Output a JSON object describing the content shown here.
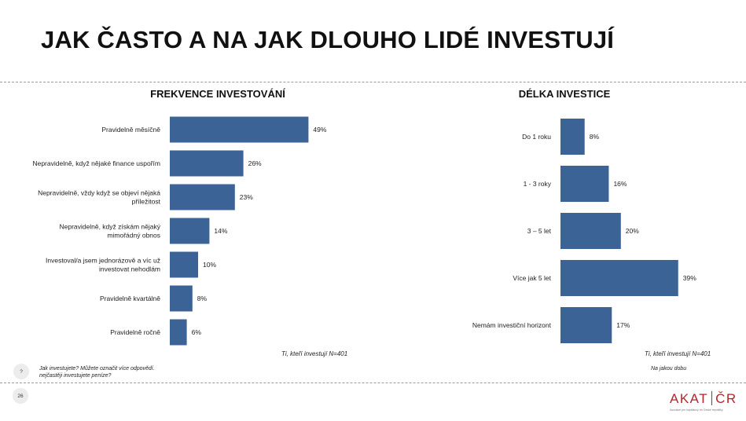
{
  "title": "JAK ČASTO A NA JAK DLOUHO LIDÉ INVESTUJÍ",
  "chart_data": [
    {
      "type": "bar",
      "orientation": "horizontal",
      "title": "FREKVENCE INVESTOVÁNÍ",
      "categories": [
        [
          "Pravidelně měsíčně"
        ],
        [
          "Nepravidelně, když nějaké finance uspořím"
        ],
        [
          "Nepravidelně, vždy když se objeví nějaká",
          "příležitost"
        ],
        [
          "Nepravidelně, když získám nějaký",
          "mimořádný obnos"
        ],
        [
          "Investoval/a jsem jednorázově a víc už",
          "investovat nehodlám"
        ],
        [
          "Pravidelně kvartálně"
        ],
        [
          "Pravidelně ročně"
        ]
      ],
      "values": [
        49,
        26,
        23,
        14,
        10,
        8,
        6
      ],
      "value_suffix": "%",
      "base": "Ti, kteří investují N=401",
      "bar_color": "#3b6396"
    },
    {
      "type": "bar",
      "orientation": "horizontal",
      "title": "DÉLKA INVESTICE",
      "categories": [
        [
          "Do 1 roku"
        ],
        [
          "1 - 3 roky"
        ],
        [
          "3 – 5 let"
        ],
        [
          "Více jak 5 let"
        ],
        [
          "Nemám investiční horizont"
        ]
      ],
      "values": [
        8,
        16,
        20,
        39,
        17
      ],
      "value_suffix": "%",
      "base": "Ti, kteří investují N=401",
      "bar_color": "#3b6396"
    }
  ],
  "footer": {
    "question_badge": "?",
    "question_left_1": "Jak investujete?   Můžete označit více odpovědí.",
    "question_left_2": "nejčastěji investujete peníze?",
    "question_right": "Na jakou dobu",
    "page_number": "26",
    "logo_left": "AKAT",
    "logo_right": "ČR",
    "logo_sub": "Asociace pro kapitálový trh České republiky"
  }
}
